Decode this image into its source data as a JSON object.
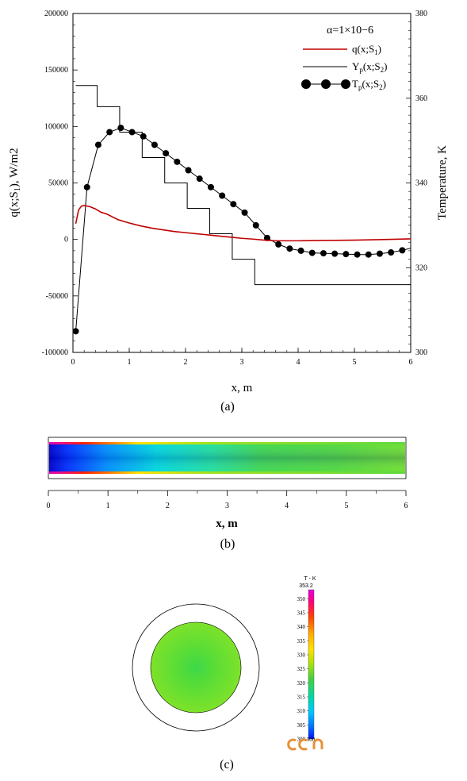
{
  "figure": {
    "panel_a_label": "(a)",
    "panel_b_label": "(b)",
    "panel_c_label": "(c)"
  },
  "chart_data": [
    {
      "type": "line",
      "panel": "(a)",
      "xlabel": "x, m",
      "ylabel_left": "q(x;S1), W/m2",
      "ylabel_right": "Temperature, K",
      "xlim": [
        0,
        6
      ],
      "ylim_left": [
        -100000,
        200000
      ],
      "ylim_right": [
        300,
        380
      ],
      "x_ticks": [
        "0",
        "1",
        "2",
        "3",
        "4",
        "5",
        "6"
      ],
      "y_left_ticks": [
        "-100000",
        "-50000",
        "0",
        "50000",
        "100000",
        "150000",
        "200000"
      ],
      "y_right_ticks": [
        "300",
        "320",
        "340",
        "360",
        "380"
      ],
      "annotation": "α=1×10−6",
      "grid": false,
      "legend_position": "top-right",
      "series": [
        {
          "name": "q(x;S1)",
          "axis": "left",
          "color": "#c00000",
          "style": "line",
          "x": [
            0.05,
            0.1,
            0.15,
            0.2,
            0.3,
            0.4,
            0.5,
            0.6,
            0.7,
            0.8,
            1.0,
            1.2,
            1.4,
            1.6,
            1.8,
            2.0,
            2.2,
            2.4,
            2.6,
            2.8,
            3.0,
            3.2,
            3.4,
            3.6,
            4.0,
            4.5,
            5.0,
            5.5,
            6.0
          ],
          "values": [
            14000,
            26000,
            29500,
            30000,
            29000,
            27000,
            24000,
            22500,
            20000,
            17500,
            14500,
            12000,
            10000,
            8500,
            7000,
            6000,
            5000,
            4000,
            3000,
            2000,
            1000,
            300,
            -600,
            -1200,
            -1200,
            -900,
            -600,
            -100,
            500
          ]
        },
        {
          "name": "Yp(x;S2)",
          "axis": "right",
          "color": "#000000",
          "style": "step",
          "steps": [
            {
              "x0": 0.05,
              "x1": 0.43,
              "value": 363
            },
            {
              "x0": 0.43,
              "x1": 0.83,
              "value": 358
            },
            {
              "x0": 0.83,
              "x1": 1.23,
              "value": 352
            },
            {
              "x0": 1.23,
              "x1": 1.63,
              "value": 346
            },
            {
              "x0": 1.63,
              "x1": 2.03,
              "value": 340
            },
            {
              "x0": 2.03,
              "x1": 2.43,
              "value": 334
            },
            {
              "x0": 2.43,
              "x1": 2.83,
              "value": 328
            },
            {
              "x0": 2.83,
              "x1": 3.23,
              "value": 322
            },
            {
              "x0": 3.23,
              "x1": 6.0,
              "value": 316
            }
          ]
        },
        {
          "name": "Tp(x;S2)",
          "axis": "right",
          "color": "#000000",
          "style": "line+markers",
          "x": [
            0.05,
            0.25,
            0.45,
            0.65,
            0.85,
            1.05,
            1.25,
            1.45,
            1.65,
            1.85,
            2.05,
            2.25,
            2.45,
            2.65,
            2.85,
            3.05,
            3.25,
            3.45,
            3.65,
            3.85,
            4.05,
            4.25,
            4.45,
            4.65,
            4.85,
            5.05,
            5.25,
            5.45,
            5.65,
            5.85,
            6.0
          ],
          "values": [
            305,
            339,
            349,
            352,
            353,
            352,
            351,
            349,
            347,
            345,
            343,
            341,
            339,
            337,
            335,
            333,
            330,
            327,
            325.5,
            324.5,
            324,
            323.5,
            323.4,
            323.3,
            323.2,
            323.1,
            323.1,
            323.3,
            323.6,
            324.1,
            324.6
          ]
        }
      ]
    },
    {
      "type": "heatmap",
      "panel": "(b)",
      "xlabel": "x, m",
      "xlim": [
        0,
        6
      ],
      "x_ticks": [
        "0",
        "1",
        "2",
        "3",
        "4",
        "5",
        "6"
      ],
      "description_colors": [
        "#0000d0",
        "#00a0ff",
        "#00e0c0",
        "#40d840",
        "#80e020",
        "#ffe000",
        "#ff4000",
        "#e000c0"
      ]
    },
    {
      "type": "heatmap",
      "panel": "(c)",
      "colorbar_title": "T - K",
      "colorbar_max_label": "353.2",
      "colorbar_ticks": [
        "350",
        "345",
        "340",
        "335",
        "330",
        "325",
        "320",
        "315",
        "310",
        "305",
        "300"
      ],
      "colorbar_min_label": "300",
      "colorbar_colors": [
        "#e000e0",
        "#ff0060",
        "#ff6000",
        "#ffb000",
        "#ffe000",
        "#c0e000",
        "#40d040",
        "#00d8a0",
        "#00c8ff",
        "#0080ff",
        "#0010ff"
      ],
      "core_color": "#66dd33"
    }
  ]
}
